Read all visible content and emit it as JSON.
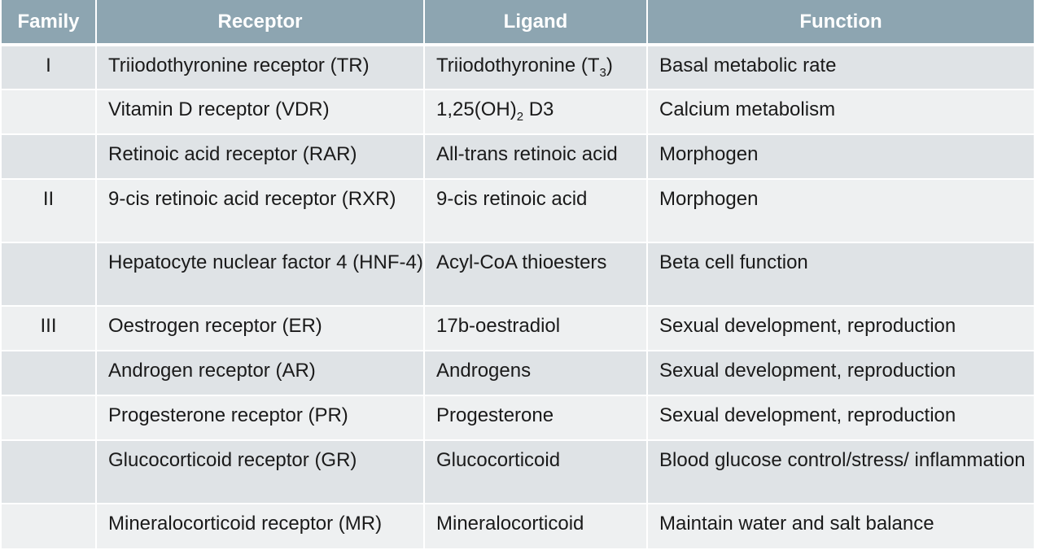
{
  "table": {
    "headers": {
      "family": "Family",
      "receptor": "Receptor",
      "ligand": "Ligand",
      "function": "Function"
    },
    "rows": [
      {
        "family": "I",
        "receptor": "Triiodothyronine receptor (TR)",
        "ligand": "Triiodothyronine (T",
        "ligand_sub": "3",
        "ligand_after": ")",
        "function": "Basal metabolic rate"
      },
      {
        "family": "",
        "receptor": "Vitamin D receptor (VDR)",
        "ligand": "1,25(OH)",
        "ligand_sub": "2",
        "ligand_after": " D3",
        "function": "Calcium metabolism"
      },
      {
        "family": "",
        "receptor": "Retinoic acid receptor (RAR)",
        "ligand": "All-trans retinoic acid",
        "function": "Morphogen"
      },
      {
        "family": "II",
        "receptor": "9-cis retinoic acid receptor (RXR)",
        "ligand": "9-cis retinoic acid",
        "function": "Morphogen"
      },
      {
        "family": "",
        "receptor": "Hepatocyte nuclear factor 4 (HNF-4)",
        "ligand": "Acyl-CoA thioesters",
        "function": "Beta cell function"
      },
      {
        "family": "III",
        "receptor": "Oestrogen receptor (ER)",
        "ligand": "17b-oestradiol",
        "function": "Sexual development, reproduction"
      },
      {
        "family": "",
        "receptor": "Androgen receptor (AR)",
        "ligand": "Androgens",
        "function": "Sexual development, reproduction"
      },
      {
        "family": "",
        "receptor": "Progesterone receptor (PR)",
        "ligand": "Progesterone",
        "function": "Sexual development, reproduction"
      },
      {
        "family": "",
        "receptor": "Glucocorticoid receptor (GR)",
        "ligand": "Glucocorticoid",
        "function": "Blood glucose control/stress/ inflammation"
      },
      {
        "family": "",
        "receptor": "Mineralocorticoid receptor (MR)",
        "ligand": "Mineralocorticoid",
        "function": "Maintain water and salt balance"
      }
    ]
  },
  "colors": {
    "header_bg": "#8da5b1",
    "row_odd_bg": "#dfe3e6",
    "row_even_bg": "#eef0f1"
  }
}
